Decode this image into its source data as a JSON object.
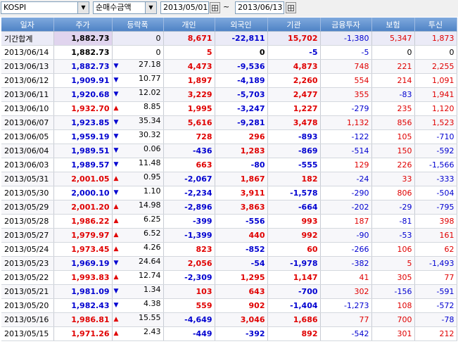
{
  "toolbar": {
    "market": "KOSPI",
    "metric": "순매수금액",
    "date_from": "2013/05/01",
    "date_to": "2013/06/13",
    "range_separator": "~",
    "dropdown_icon": "chevron-down-icon",
    "calendar_icon": "calendar-icon"
  },
  "table": {
    "headers": [
      "일자",
      "주가",
      "등락폭",
      "개인",
      "외국인",
      "기관",
      "금융투자",
      "보험",
      "투신"
    ],
    "summary": {
      "date": "기간합계",
      "price": "1,882.73",
      "change": "0",
      "individual": "8,671",
      "foreign": "-22,811",
      "institution": "15,702",
      "fininv": "-1,380",
      "insurance": "5,347",
      "trust": "1,873"
    },
    "rows": [
      {
        "date": "2013/06/14",
        "price": "1,882.73",
        "dir": "none",
        "change": "0",
        "individual": "5",
        "foreign": "0",
        "institution": "-5",
        "fininv": "-5",
        "insurance": "0",
        "trust": "0"
      },
      {
        "date": "2013/06/13",
        "price": "1,882.73",
        "dir": "down",
        "change": "27.18",
        "individual": "4,473",
        "foreign": "-9,536",
        "institution": "4,873",
        "fininv": "748",
        "insurance": "221",
        "trust": "2,255"
      },
      {
        "date": "2013/06/12",
        "price": "1,909.91",
        "dir": "down",
        "change": "10.77",
        "individual": "1,897",
        "foreign": "-4,189",
        "institution": "2,260",
        "fininv": "554",
        "insurance": "214",
        "trust": "1,091"
      },
      {
        "date": "2013/06/11",
        "price": "1,920.68",
        "dir": "down",
        "change": "12.02",
        "individual": "3,229",
        "foreign": "-5,703",
        "institution": "2,477",
        "fininv": "355",
        "insurance": "-83",
        "trust": "1,941"
      },
      {
        "date": "2013/06/10",
        "price": "1,932.70",
        "dir": "up",
        "change": "8.85",
        "individual": "1,995",
        "foreign": "-3,247",
        "institution": "1,227",
        "fininv": "-279",
        "insurance": "235",
        "trust": "1,120"
      },
      {
        "date": "2013/06/07",
        "price": "1,923.85",
        "dir": "down",
        "change": "35.34",
        "individual": "5,616",
        "foreign": "-9,281",
        "institution": "3,478",
        "fininv": "1,132",
        "insurance": "856",
        "trust": "1,523"
      },
      {
        "date": "2013/06/05",
        "price": "1,959.19",
        "dir": "down",
        "change": "30.32",
        "individual": "728",
        "foreign": "296",
        "institution": "-893",
        "fininv": "-122",
        "insurance": "105",
        "trust": "-710"
      },
      {
        "date": "2013/06/04",
        "price": "1,989.51",
        "dir": "down",
        "change": "0.06",
        "individual": "-436",
        "foreign": "1,283",
        "institution": "-869",
        "fininv": "-514",
        "insurance": "150",
        "trust": "-592"
      },
      {
        "date": "2013/06/03",
        "price": "1,989.57",
        "dir": "down",
        "change": "11.48",
        "individual": "663",
        "foreign": "-80",
        "institution": "-555",
        "fininv": "129",
        "insurance": "226",
        "trust": "-1,566"
      },
      {
        "date": "2013/05/31",
        "price": "2,001.05",
        "dir": "up",
        "change": "0.95",
        "individual": "-2,067",
        "foreign": "1,867",
        "institution": "182",
        "fininv": "-24",
        "insurance": "33",
        "trust": "-333"
      },
      {
        "date": "2013/05/30",
        "price": "2,000.10",
        "dir": "down",
        "change": "1.10",
        "individual": "-2,234",
        "foreign": "3,911",
        "institution": "-1,578",
        "fininv": "-290",
        "insurance": "806",
        "trust": "-504"
      },
      {
        "date": "2013/05/29",
        "price": "2,001.20",
        "dir": "up",
        "change": "14.98",
        "individual": "-2,896",
        "foreign": "3,863",
        "institution": "-664",
        "fininv": "-202",
        "insurance": "-29",
        "trust": "-795"
      },
      {
        "date": "2013/05/28",
        "price": "1,986.22",
        "dir": "up",
        "change": "6.25",
        "individual": "-399",
        "foreign": "-556",
        "institution": "993",
        "fininv": "187",
        "insurance": "-81",
        "trust": "398"
      },
      {
        "date": "2013/05/27",
        "price": "1,979.97",
        "dir": "up",
        "change": "6.52",
        "individual": "-1,399",
        "foreign": "440",
        "institution": "992",
        "fininv": "-90",
        "insurance": "-53",
        "trust": "161"
      },
      {
        "date": "2013/05/24",
        "price": "1,973.45",
        "dir": "up",
        "change": "4.26",
        "individual": "823",
        "foreign": "-852",
        "institution": "60",
        "fininv": "-266",
        "insurance": "106",
        "trust": "62"
      },
      {
        "date": "2013/05/23",
        "price": "1,969.19",
        "dir": "down",
        "change": "24.64",
        "individual": "2,056",
        "foreign": "-54",
        "institution": "-1,978",
        "fininv": "-382",
        "insurance": "5",
        "trust": "-1,493"
      },
      {
        "date": "2013/05/22",
        "price": "1,993.83",
        "dir": "up",
        "change": "12.74",
        "individual": "-2,309",
        "foreign": "1,295",
        "institution": "1,147",
        "fininv": "41",
        "insurance": "305",
        "trust": "77"
      },
      {
        "date": "2013/05/21",
        "price": "1,981.09",
        "dir": "down",
        "change": "1.34",
        "individual": "103",
        "foreign": "643",
        "institution": "-700",
        "fininv": "302",
        "insurance": "-156",
        "trust": "-591"
      },
      {
        "date": "2013/05/20",
        "price": "1,982.43",
        "dir": "down",
        "change": "4.38",
        "individual": "559",
        "foreign": "902",
        "institution": "-1,404",
        "fininv": "-1,273",
        "insurance": "108",
        "trust": "-572"
      },
      {
        "date": "2013/05/16",
        "price": "1,986.81",
        "dir": "up",
        "change": "15.55",
        "individual": "-4,649",
        "foreign": "3,046",
        "institution": "1,686",
        "fininv": "77",
        "insurance": "700",
        "trust": "-78"
      },
      {
        "date": "2013/05/15",
        "price": "1,971.26",
        "dir": "up",
        "change": "2.43",
        "individual": "-449",
        "foreign": "-392",
        "institution": "892",
        "fininv": "-542",
        "insurance": "301",
        "trust": "212"
      }
    ]
  }
}
